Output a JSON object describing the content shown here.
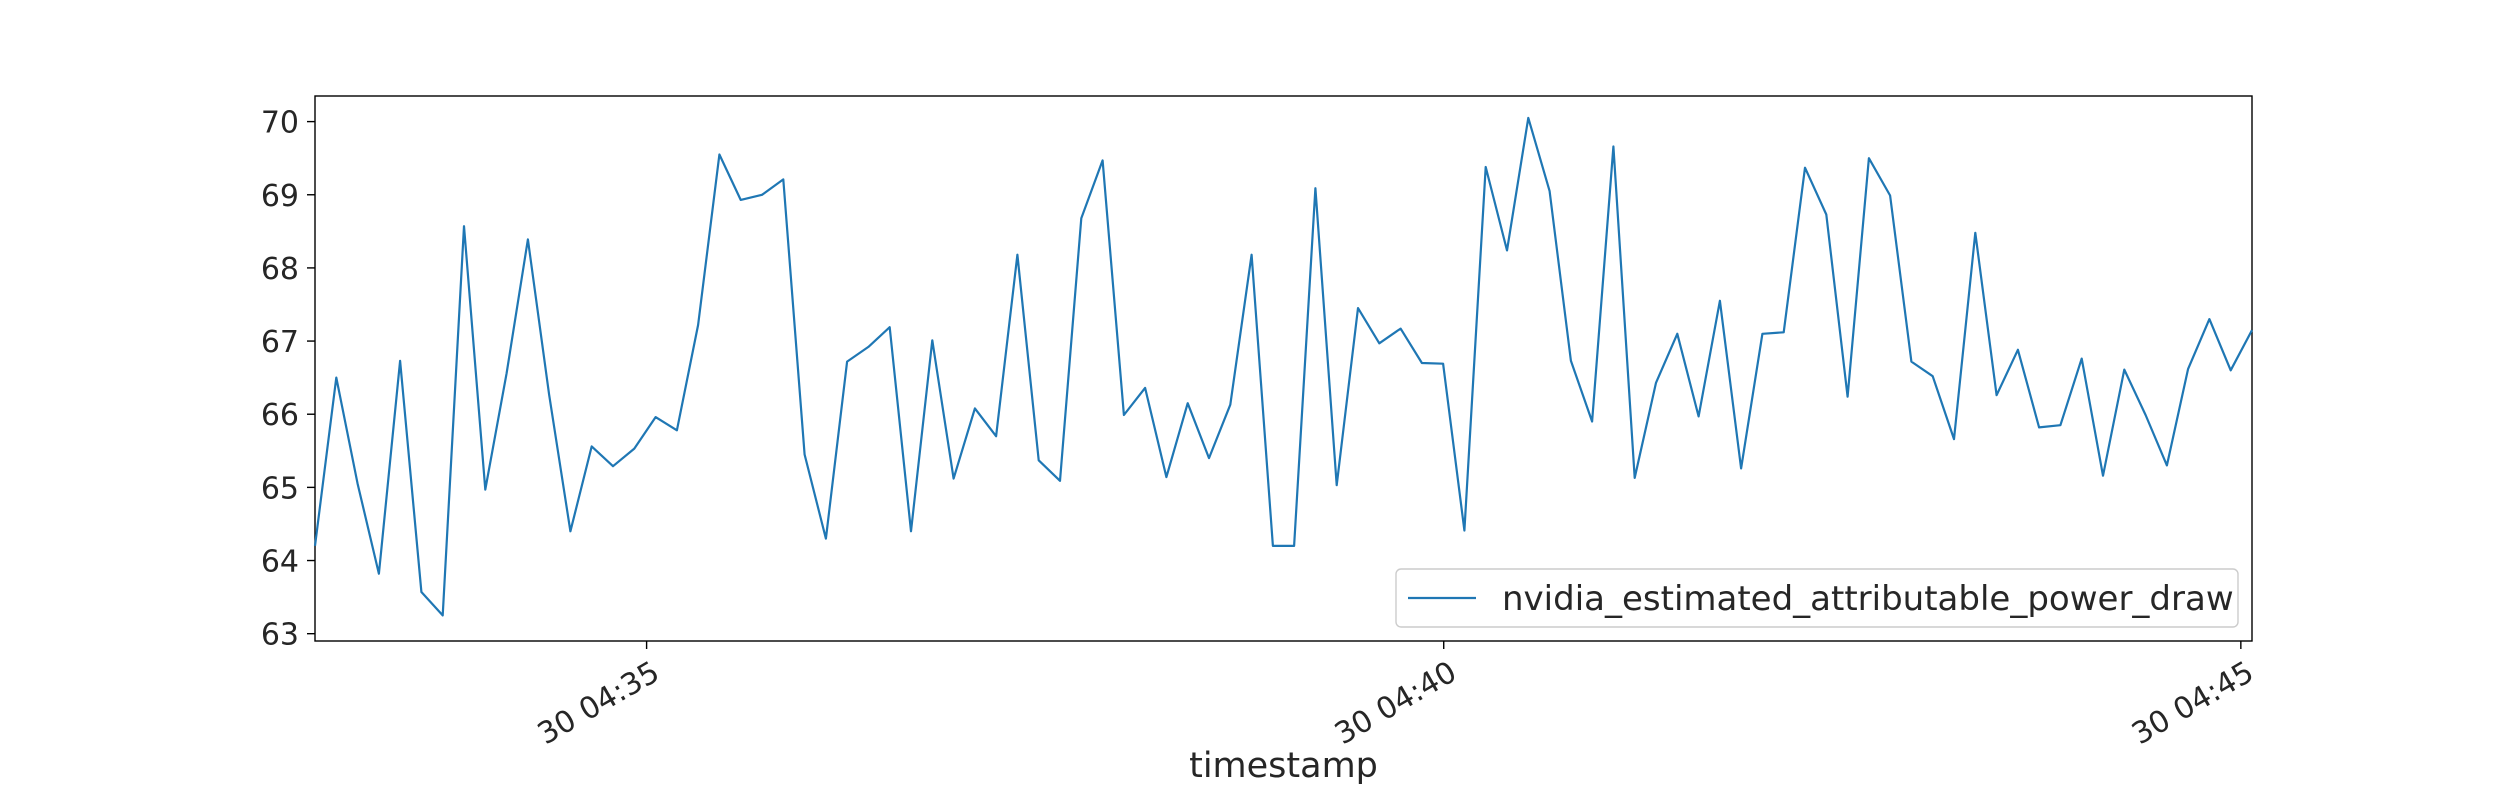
{
  "chart_data": {
    "type": "line",
    "title": "",
    "xlabel": "timestamp",
    "ylabel": "",
    "x_ticks": [
      {
        "minute": 35,
        "label": "30 04:35"
      },
      {
        "minute": 40,
        "label": "30 04:40"
      },
      {
        "minute": 45,
        "label": "30 04:45"
      }
    ],
    "xlim_minutes": [
      32.92,
      45.07
    ],
    "ylim": [
      62.9,
      70.35
    ],
    "y_ticks": [
      63,
      64,
      65,
      66,
      67,
      68,
      69,
      70
    ],
    "grid": false,
    "legend": {
      "placement": "lower-right"
    },
    "series": [
      {
        "name": "nvidia_estimated_attributable_power_draw",
        "color": "#1f77b4",
        "y": [
          64.2,
          66.5,
          65.05,
          63.82,
          66.73,
          63.57,
          63.25,
          68.57,
          64.97,
          66.56,
          68.39,
          66.27,
          64.4,
          65.56,
          65.29,
          65.53,
          65.96,
          65.78,
          67.22,
          69.55,
          68.93,
          69.0,
          69.21,
          65.45,
          64.3,
          66.72,
          66.92,
          67.19,
          64.4,
          67.01,
          65.12,
          66.08,
          65.7,
          68.18,
          65.37,
          65.09,
          68.68,
          69.47,
          65.99,
          66.36,
          65.14,
          66.15,
          65.4,
          66.13,
          68.18,
          64.2,
          64.2,
          69.09,
          65.03,
          67.45,
          66.97,
          67.17,
          66.7,
          66.69,
          64.41,
          69.38,
          68.24,
          70.05,
          69.05,
          66.73,
          65.9,
          69.66,
          65.13,
          66.43,
          67.1,
          65.97,
          67.55,
          65.26,
          67.1,
          67.12,
          69.37,
          68.73,
          66.24,
          69.5,
          68.99,
          66.72,
          66.52,
          65.66,
          68.48,
          66.26,
          66.88,
          65.82,
          65.85,
          66.76,
          65.16,
          66.61,
          65.99,
          65.3,
          66.62,
          67.3,
          66.6,
          67.15
        ]
      }
    ]
  }
}
